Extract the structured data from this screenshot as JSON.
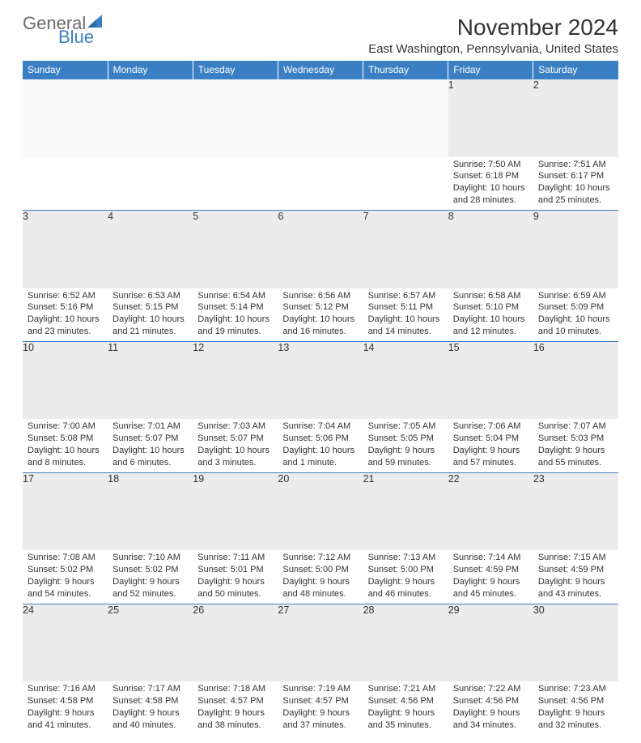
{
  "brand": {
    "word1": "General",
    "word2": "Blue",
    "accent_color": "#3a7fc4",
    "gray": "#6b6b6b"
  },
  "title": "November 2024",
  "location": "East Washington, Pennsylvania, United States",
  "day_headers": [
    "Sunday",
    "Monday",
    "Tuesday",
    "Wednesday",
    "Thursday",
    "Friday",
    "Saturday"
  ],
  "colors": {
    "header_bg": "#3a7fc4",
    "header_text": "#ffffff",
    "daynum_bg": "#ececec",
    "border": "#3a7fc4",
    "text": "#333333"
  },
  "weeks": [
    [
      {
        "n": "",
        "lines": []
      },
      {
        "n": "",
        "lines": []
      },
      {
        "n": "",
        "lines": []
      },
      {
        "n": "",
        "lines": []
      },
      {
        "n": "",
        "lines": []
      },
      {
        "n": "1",
        "lines": [
          "Sunrise: 7:50 AM",
          "Sunset: 6:18 PM",
          "Daylight: 10 hours",
          "and 28 minutes."
        ]
      },
      {
        "n": "2",
        "lines": [
          "Sunrise: 7:51 AM",
          "Sunset: 6:17 PM",
          "Daylight: 10 hours",
          "and 25 minutes."
        ]
      }
    ],
    [
      {
        "n": "3",
        "lines": [
          "Sunrise: 6:52 AM",
          "Sunset: 5:16 PM",
          "Daylight: 10 hours",
          "and 23 minutes."
        ]
      },
      {
        "n": "4",
        "lines": [
          "Sunrise: 6:53 AM",
          "Sunset: 5:15 PM",
          "Daylight: 10 hours",
          "and 21 minutes."
        ]
      },
      {
        "n": "5",
        "lines": [
          "Sunrise: 6:54 AM",
          "Sunset: 5:14 PM",
          "Daylight: 10 hours",
          "and 19 minutes."
        ]
      },
      {
        "n": "6",
        "lines": [
          "Sunrise: 6:56 AM",
          "Sunset: 5:12 PM",
          "Daylight: 10 hours",
          "and 16 minutes."
        ]
      },
      {
        "n": "7",
        "lines": [
          "Sunrise: 6:57 AM",
          "Sunset: 5:11 PM",
          "Daylight: 10 hours",
          "and 14 minutes."
        ]
      },
      {
        "n": "8",
        "lines": [
          "Sunrise: 6:58 AM",
          "Sunset: 5:10 PM",
          "Daylight: 10 hours",
          "and 12 minutes."
        ]
      },
      {
        "n": "9",
        "lines": [
          "Sunrise: 6:59 AM",
          "Sunset: 5:09 PM",
          "Daylight: 10 hours",
          "and 10 minutes."
        ]
      }
    ],
    [
      {
        "n": "10",
        "lines": [
          "Sunrise: 7:00 AM",
          "Sunset: 5:08 PM",
          "Daylight: 10 hours",
          "and 8 minutes."
        ]
      },
      {
        "n": "11",
        "lines": [
          "Sunrise: 7:01 AM",
          "Sunset: 5:07 PM",
          "Daylight: 10 hours",
          "and 6 minutes."
        ]
      },
      {
        "n": "12",
        "lines": [
          "Sunrise: 7:03 AM",
          "Sunset: 5:07 PM",
          "Daylight: 10 hours",
          "and 3 minutes."
        ]
      },
      {
        "n": "13",
        "lines": [
          "Sunrise: 7:04 AM",
          "Sunset: 5:06 PM",
          "Daylight: 10 hours",
          "and 1 minute."
        ]
      },
      {
        "n": "14",
        "lines": [
          "Sunrise: 7:05 AM",
          "Sunset: 5:05 PM",
          "Daylight: 9 hours",
          "and 59 minutes."
        ]
      },
      {
        "n": "15",
        "lines": [
          "Sunrise: 7:06 AM",
          "Sunset: 5:04 PM",
          "Daylight: 9 hours",
          "and 57 minutes."
        ]
      },
      {
        "n": "16",
        "lines": [
          "Sunrise: 7:07 AM",
          "Sunset: 5:03 PM",
          "Daylight: 9 hours",
          "and 55 minutes."
        ]
      }
    ],
    [
      {
        "n": "17",
        "lines": [
          "Sunrise: 7:08 AM",
          "Sunset: 5:02 PM",
          "Daylight: 9 hours",
          "and 54 minutes."
        ]
      },
      {
        "n": "18",
        "lines": [
          "Sunrise: 7:10 AM",
          "Sunset: 5:02 PM",
          "Daylight: 9 hours",
          "and 52 minutes."
        ]
      },
      {
        "n": "19",
        "lines": [
          "Sunrise: 7:11 AM",
          "Sunset: 5:01 PM",
          "Daylight: 9 hours",
          "and 50 minutes."
        ]
      },
      {
        "n": "20",
        "lines": [
          "Sunrise: 7:12 AM",
          "Sunset: 5:00 PM",
          "Daylight: 9 hours",
          "and 48 minutes."
        ]
      },
      {
        "n": "21",
        "lines": [
          "Sunrise: 7:13 AM",
          "Sunset: 5:00 PM",
          "Daylight: 9 hours",
          "and 46 minutes."
        ]
      },
      {
        "n": "22",
        "lines": [
          "Sunrise: 7:14 AM",
          "Sunset: 4:59 PM",
          "Daylight: 9 hours",
          "and 45 minutes."
        ]
      },
      {
        "n": "23",
        "lines": [
          "Sunrise: 7:15 AM",
          "Sunset: 4:59 PM",
          "Daylight: 9 hours",
          "and 43 minutes."
        ]
      }
    ],
    [
      {
        "n": "24",
        "lines": [
          "Sunrise: 7:16 AM",
          "Sunset: 4:58 PM",
          "Daylight: 9 hours",
          "and 41 minutes."
        ]
      },
      {
        "n": "25",
        "lines": [
          "Sunrise: 7:17 AM",
          "Sunset: 4:58 PM",
          "Daylight: 9 hours",
          "and 40 minutes."
        ]
      },
      {
        "n": "26",
        "lines": [
          "Sunrise: 7:18 AM",
          "Sunset: 4:57 PM",
          "Daylight: 9 hours",
          "and 38 minutes."
        ]
      },
      {
        "n": "27",
        "lines": [
          "Sunrise: 7:19 AM",
          "Sunset: 4:57 PM",
          "Daylight: 9 hours",
          "and 37 minutes."
        ]
      },
      {
        "n": "28",
        "lines": [
          "Sunrise: 7:21 AM",
          "Sunset: 4:56 PM",
          "Daylight: 9 hours",
          "and 35 minutes."
        ]
      },
      {
        "n": "29",
        "lines": [
          "Sunrise: 7:22 AM",
          "Sunset: 4:56 PM",
          "Daylight: 9 hours",
          "and 34 minutes."
        ]
      },
      {
        "n": "30",
        "lines": [
          "Sunrise: 7:23 AM",
          "Sunset: 4:56 PM",
          "Daylight: 9 hours",
          "and 32 minutes."
        ]
      }
    ]
  ]
}
